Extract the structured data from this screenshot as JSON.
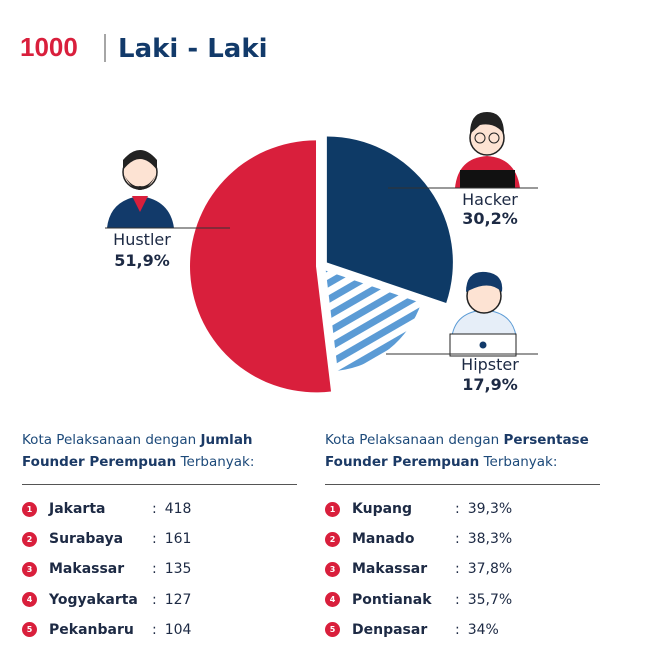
{
  "header": {
    "logo": "1000",
    "title": "Laki - Laki"
  },
  "chart_data": {
    "type": "pie",
    "categories": [
      "Hustler",
      "Hacker",
      "Hipster"
    ],
    "values": [
      51.9,
      30.2,
      17.9
    ],
    "value_labels": [
      "51,9%",
      "30,2%",
      "17,9%"
    ],
    "colors": [
      "#d91f3c",
      "#0e3a66",
      "#5b9bd5"
    ]
  },
  "lists": [
    {
      "intro": [
        "Kota Pelaksanaan dengan ",
        "Jumlah Founder Perempuan",
        " Terbanyak:"
      ],
      "rows": [
        {
          "rank": 1,
          "city": "Jakarta",
          "value": 418
        },
        {
          "rank": 2,
          "city": "Surabaya",
          "value": 161
        },
        {
          "rank": 3,
          "city": "Makassar",
          "value": 135
        },
        {
          "rank": 4,
          "city": "Yogyakarta",
          "value": 127
        },
        {
          "rank": 5,
          "city": "Pekanbaru",
          "value": 104
        }
      ]
    },
    {
      "intro": [
        "Kota Pelaksanaan dengan ",
        "Persentase Founder Perempuan",
        " Terbanyak:"
      ],
      "rows": [
        {
          "rank": 1,
          "city": "Kupang",
          "value": "39,3%"
        },
        {
          "rank": 2,
          "city": "Manado",
          "value": "38,3%"
        },
        {
          "rank": 3,
          "city": "Makassar",
          "value": "37,8%"
        },
        {
          "rank": 4,
          "city": "Pontianak",
          "value": "35,7%"
        },
        {
          "rank": 5,
          "city": "Denpasar",
          "value": "34%"
        }
      ]
    }
  ]
}
